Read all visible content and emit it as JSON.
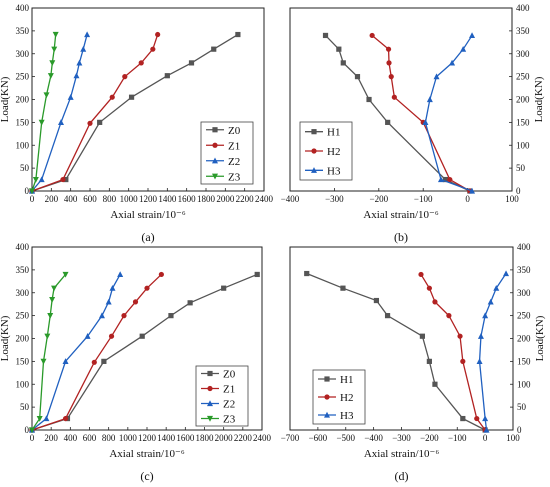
{
  "chart_data": [
    {
      "type": "line",
      "panel_label": "(a)",
      "xlabel": "Axial strain/10⁻⁶",
      "ylabel": "Load(KN)",
      "xlim": [
        0,
        2400
      ],
      "ylim": [
        0,
        400
      ],
      "xticks": [
        0,
        200,
        400,
        600,
        800,
        1000,
        1200,
        1400,
        1600,
        1800,
        2000,
        2200,
        2400
      ],
      "yticks": [
        0,
        50,
        100,
        150,
        200,
        250,
        300,
        350,
        400
      ],
      "y_axis_side": "left",
      "legend_position": "lower-right",
      "series": [
        {
          "name": "Z0",
          "color": "#555555",
          "marker": "square",
          "x": [
            0,
            350,
            700,
            1030,
            1400,
            1650,
            1880,
            2130
          ],
          "y": [
            0,
            25,
            150,
            205,
            252,
            280,
            310,
            342
          ]
        },
        {
          "name": "Z1",
          "color": "#b22222",
          "marker": "circle",
          "x": [
            0,
            320,
            600,
            830,
            960,
            1130,
            1250,
            1300
          ],
          "y": [
            0,
            25,
            148,
            205,
            250,
            280,
            310,
            342
          ]
        },
        {
          "name": "Z2",
          "color": "#2060c0",
          "marker": "triangle",
          "x": [
            0,
            100,
            300,
            400,
            460,
            490,
            530,
            570
          ],
          "y": [
            0,
            25,
            150,
            205,
            252,
            280,
            310,
            342
          ]
        },
        {
          "name": "Z3",
          "color": "#2a9a2a",
          "marker": "triangle-down",
          "x": [
            0,
            40,
            100,
            150,
            195,
            210,
            230,
            245
          ],
          "y": [
            0,
            25,
            150,
            210,
            252,
            280,
            310,
            342
          ]
        }
      ]
    },
    {
      "type": "line",
      "panel_label": "(b)",
      "xlabel": "Axial strain/10⁻⁶",
      "ylabel": "Load(KN)",
      "xlim": [
        -400,
        100
      ],
      "ylim": [
        0,
        400
      ],
      "xticks": [
        -400,
        -300,
        -200,
        -100,
        0,
        100
      ],
      "yticks": [
        0,
        50,
        100,
        150,
        200,
        250,
        300,
        350,
        400
      ],
      "y_axis_side": "right",
      "legend_position": "lower-left",
      "series": [
        {
          "name": "H1",
          "color": "#555555",
          "marker": "square",
          "x": [
            5,
            -50,
            -180,
            -222,
            -248,
            -280,
            -290,
            -320
          ],
          "y": [
            0,
            25,
            150,
            200,
            250,
            280,
            310,
            340
          ]
        },
        {
          "name": "H2",
          "color": "#b22222",
          "marker": "circle",
          "x": [
            5,
            -40,
            -100,
            -165,
            -172,
            -177,
            -178,
            -215
          ],
          "y": [
            0,
            25,
            150,
            205,
            250,
            280,
            310,
            340
          ]
        },
        {
          "name": "H3",
          "color": "#2060c0",
          "marker": "triangle",
          "x": [
            10,
            -60,
            -95,
            -85,
            -70,
            -35,
            -10,
            10
          ],
          "y": [
            0,
            25,
            150,
            200,
            250,
            280,
            310,
            340
          ]
        }
      ]
    },
    {
      "type": "line",
      "panel_label": "(c)",
      "xlabel": "Axial strain/10⁻⁶",
      "ylabel": "Load(KN)",
      "xlim": [
        0,
        2400
      ],
      "ylim": [
        0,
        400
      ],
      "xticks": [
        0,
        200,
        400,
        600,
        800,
        1000,
        1200,
        1400,
        1600,
        1800,
        2000,
        2200,
        2400
      ],
      "yticks": [
        0,
        50,
        100,
        150,
        200,
        250,
        300,
        350,
        400
      ],
      "y_axis_side": "left",
      "legend_position": "lower-right",
      "series": [
        {
          "name": "Z0",
          "color": "#555555",
          "marker": "square",
          "x": [
            0,
            370,
            750,
            1150,
            1450,
            1650,
            2000,
            2350
          ],
          "y": [
            0,
            25,
            150,
            205,
            250,
            278,
            310,
            340
          ]
        },
        {
          "name": "Z1",
          "color": "#b22222",
          "marker": "circle",
          "x": [
            0,
            350,
            650,
            830,
            960,
            1080,
            1200,
            1350
          ],
          "y": [
            0,
            25,
            148,
            205,
            250,
            280,
            310,
            340
          ]
        },
        {
          "name": "Z2",
          "color": "#2060c0",
          "marker": "triangle",
          "x": [
            0,
            150,
            350,
            580,
            730,
            800,
            840,
            920
          ],
          "y": [
            0,
            25,
            150,
            205,
            250,
            280,
            310,
            340
          ]
        },
        {
          "name": "Z3",
          "color": "#2a9a2a",
          "marker": "triangle-down",
          "x": [
            0,
            80,
            120,
            160,
            190,
            210,
            230,
            350
          ],
          "y": [
            0,
            25,
            150,
            205,
            250,
            285,
            310,
            340
          ]
        }
      ]
    },
    {
      "type": "line",
      "panel_label": "(d)",
      "xlabel": "Axial strain/10⁻⁶",
      "ylabel": "Load(KN)",
      "xlim": [
        -700,
        100
      ],
      "ylim": [
        0,
        400
      ],
      "xticks": [
        -700,
        -600,
        -500,
        -400,
        -300,
        -200,
        -100,
        0,
        100
      ],
      "yticks": [
        0,
        50,
        100,
        150,
        200,
        250,
        300,
        350,
        400
      ],
      "y_axis_side": "right",
      "legend_position": "lower-left",
      "series": [
        {
          "name": "H1",
          "color": "#555555",
          "marker": "square",
          "x": [
            0,
            -80,
            -180,
            -200,
            -225,
            -350,
            -390,
            -510,
            -640
          ],
          "y": [
            0,
            25,
            100,
            150,
            205,
            250,
            283,
            310,
            342
          ]
        },
        {
          "name": "H2",
          "color": "#b22222",
          "marker": "circle",
          "x": [
            0,
            -30,
            -80,
            -90,
            -130,
            -180,
            -200,
            -230
          ],
          "y": [
            0,
            25,
            150,
            205,
            250,
            280,
            310,
            340
          ]
        },
        {
          "name": "H3",
          "color": "#2060c0",
          "marker": "triangle",
          "x": [
            5,
            0,
            -20,
            -15,
            0,
            20,
            40,
            75
          ],
          "y": [
            0,
            25,
            150,
            205,
            250,
            280,
            310,
            342
          ]
        }
      ]
    }
  ]
}
